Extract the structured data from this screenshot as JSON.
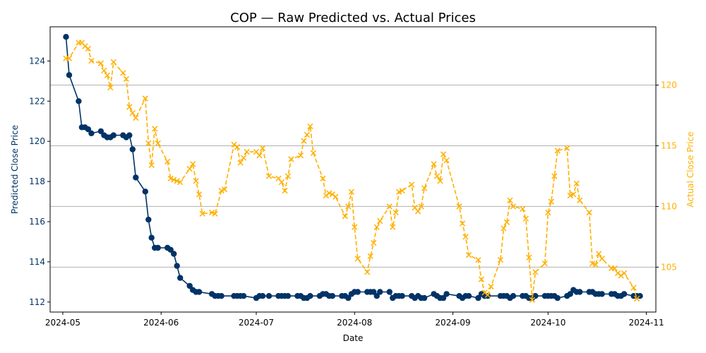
{
  "chart_data": {
    "type": "line",
    "title": "COP — Raw Predicted vs. Actual Prices",
    "xlabel": "Date",
    "ylabel_left": "Predicted Close Price",
    "ylabel_right": "Actual Close Price",
    "x_ticks": [
      "2024-05",
      "2024-06",
      "2024-07",
      "2024-08",
      "2024-09",
      "2024-10",
      "2024-11"
    ],
    "xlim": [
      "2024-04-27",
      "2024-11-04"
    ],
    "ylim_left": [
      111.5,
      125.7
    ],
    "yticks_left": [
      112,
      114,
      116,
      118,
      120,
      122,
      124
    ],
    "ylim_right": [
      101.3,
      124.8
    ],
    "yticks_right": [
      105,
      110,
      115,
      120
    ],
    "grid": "horizontal, at right-axis ticks",
    "colors": {
      "predicted": "#003366",
      "actual": "#ffb000",
      "grid": "#b0b0b0"
    },
    "series": [
      {
        "name": "Predicted Close Price",
        "axis": "left",
        "style": "solid line, circle markers",
        "points": [
          [
            "2024-05-02",
            125.2
          ],
          [
            "2024-05-03",
            123.3
          ],
          [
            "2024-05-06",
            122.0
          ],
          [
            "2024-05-07",
            120.7
          ],
          [
            "2024-05-08",
            120.7
          ],
          [
            "2024-05-09",
            120.6
          ],
          [
            "2024-05-10",
            120.4
          ],
          [
            "2024-05-13",
            120.5
          ],
          [
            "2024-05-14",
            120.3
          ],
          [
            "2024-05-15",
            120.2
          ],
          [
            "2024-05-16",
            120.2
          ],
          [
            "2024-05-17",
            120.3
          ],
          [
            "2024-05-20",
            120.3
          ],
          [
            "2024-05-21",
            120.2
          ],
          [
            "2024-05-22",
            120.3
          ],
          [
            "2024-05-23",
            119.6
          ],
          [
            "2024-05-24",
            118.2
          ],
          [
            "2024-05-27",
            117.5
          ],
          [
            "2024-05-28",
            116.1
          ],
          [
            "2024-05-29",
            115.2
          ],
          [
            "2024-05-30",
            114.7
          ],
          [
            "2024-05-31",
            114.7
          ],
          [
            "2024-06-03",
            114.7
          ],
          [
            "2024-06-04",
            114.6
          ],
          [
            "2024-06-05",
            114.4
          ],
          [
            "2024-06-06",
            113.8
          ],
          [
            "2024-06-07",
            113.2
          ],
          [
            "2024-06-10",
            112.8
          ],
          [
            "2024-06-11",
            112.6
          ],
          [
            "2024-06-12",
            112.5
          ],
          [
            "2024-06-13",
            112.5
          ],
          [
            "2024-06-17",
            112.4
          ],
          [
            "2024-06-18",
            112.3
          ],
          [
            "2024-06-19",
            112.3
          ],
          [
            "2024-06-20",
            112.3
          ],
          [
            "2024-06-24",
            112.3
          ],
          [
            "2024-06-25",
            112.3
          ],
          [
            "2024-06-26",
            112.3
          ],
          [
            "2024-06-27",
            112.3
          ],
          [
            "2024-07-01",
            112.2
          ],
          [
            "2024-07-02",
            112.3
          ],
          [
            "2024-07-03",
            112.3
          ],
          [
            "2024-07-05",
            112.3
          ],
          [
            "2024-07-08",
            112.3
          ],
          [
            "2024-07-09",
            112.3
          ],
          [
            "2024-07-10",
            112.3
          ],
          [
            "2024-07-11",
            112.3
          ],
          [
            "2024-07-14",
            112.3
          ],
          [
            "2024-07-15",
            112.3
          ],
          [
            "2024-07-16",
            112.2
          ],
          [
            "2024-07-17",
            112.2
          ],
          [
            "2024-07-18",
            112.3
          ],
          [
            "2024-07-21",
            112.3
          ],
          [
            "2024-07-22",
            112.4
          ],
          [
            "2024-07-23",
            112.4
          ],
          [
            "2024-07-24",
            112.3
          ],
          [
            "2024-07-25",
            112.3
          ],
          [
            "2024-07-28",
            112.3
          ],
          [
            "2024-07-29",
            112.3
          ],
          [
            "2024-07-30",
            112.2
          ],
          [
            "2024-07-31",
            112.4
          ],
          [
            "2024-08-01",
            112.5
          ],
          [
            "2024-08-02",
            112.5
          ],
          [
            "2024-08-05",
            112.5
          ],
          [
            "2024-08-06",
            112.5
          ],
          [
            "2024-08-07",
            112.5
          ],
          [
            "2024-08-08",
            112.3
          ],
          [
            "2024-08-09",
            112.5
          ],
          [
            "2024-08-12",
            112.5
          ],
          [
            "2024-08-13",
            112.2
          ],
          [
            "2024-08-14",
            112.3
          ],
          [
            "2024-08-15",
            112.3
          ],
          [
            "2024-08-16",
            112.3
          ],
          [
            "2024-08-19",
            112.3
          ],
          [
            "2024-08-20",
            112.2
          ],
          [
            "2024-08-21",
            112.3
          ],
          [
            "2024-08-22",
            112.2
          ],
          [
            "2024-08-23",
            112.2
          ],
          [
            "2024-08-26",
            112.4
          ],
          [
            "2024-08-27",
            112.3
          ],
          [
            "2024-08-28",
            112.2
          ],
          [
            "2024-08-29",
            112.2
          ],
          [
            "2024-08-30",
            112.4
          ],
          [
            "2024-09-03",
            112.3
          ],
          [
            "2024-09-04",
            112.2
          ],
          [
            "2024-09-05",
            112.3
          ],
          [
            "2024-09-06",
            112.3
          ],
          [
            "2024-09-09",
            112.2
          ],
          [
            "2024-09-10",
            112.4
          ],
          [
            "2024-09-11",
            112.3
          ],
          [
            "2024-09-12",
            112.3
          ],
          [
            "2024-09-16",
            112.3
          ],
          [
            "2024-09-17",
            112.3
          ],
          [
            "2024-09-18",
            112.3
          ],
          [
            "2024-09-19",
            112.2
          ],
          [
            "2024-09-20",
            112.3
          ],
          [
            "2024-09-23",
            112.3
          ],
          [
            "2024-09-24",
            112.3
          ],
          [
            "2024-09-25",
            112.2
          ],
          [
            "2024-09-26",
            112.2
          ],
          [
            "2024-09-27",
            112.3
          ],
          [
            "2024-09-30",
            112.3
          ],
          [
            "2024-10-01",
            112.3
          ],
          [
            "2024-10-02",
            112.3
          ],
          [
            "2024-10-03",
            112.3
          ],
          [
            "2024-10-04",
            112.2
          ],
          [
            "2024-10-07",
            112.3
          ],
          [
            "2024-10-08",
            112.4
          ],
          [
            "2024-10-09",
            112.6
          ],
          [
            "2024-10-10",
            112.5
          ],
          [
            "2024-10-11",
            112.5
          ],
          [
            "2024-10-14",
            112.5
          ],
          [
            "2024-10-15",
            112.5
          ],
          [
            "2024-10-16",
            112.4
          ],
          [
            "2024-10-17",
            112.4
          ],
          [
            "2024-10-18",
            112.4
          ],
          [
            "2024-10-21",
            112.4
          ],
          [
            "2024-10-22",
            112.4
          ],
          [
            "2024-10-23",
            112.3
          ],
          [
            "2024-10-24",
            112.3
          ],
          [
            "2024-10-25",
            112.4
          ],
          [
            "2024-10-28",
            112.3
          ],
          [
            "2024-10-29",
            112.3
          ],
          [
            "2024-10-30",
            112.3
          ]
        ]
      },
      {
        "name": "Actual Close Price",
        "axis": "right",
        "style": "dashed line, x markers",
        "points": [
          [
            "2024-05-02",
            122.2
          ],
          [
            "2024-05-03",
            122.2
          ],
          [
            "2024-05-06",
            123.5
          ],
          [
            "2024-05-07",
            123.5
          ],
          [
            "2024-05-08",
            123.2
          ],
          [
            "2024-05-09",
            123.0
          ],
          [
            "2024-05-10",
            122.0
          ],
          [
            "2024-05-13",
            121.8
          ],
          [
            "2024-05-14",
            121.2
          ],
          [
            "2024-05-15",
            120.8
          ],
          [
            "2024-05-16",
            119.8
          ],
          [
            "2024-05-17",
            121.9
          ],
          [
            "2024-05-20",
            121.0
          ],
          [
            "2024-05-21",
            120.5
          ],
          [
            "2024-05-22",
            118.2
          ],
          [
            "2024-05-23",
            117.7
          ],
          [
            "2024-05-24",
            117.3
          ],
          [
            "2024-05-27",
            118.9
          ],
          [
            "2024-05-28",
            115.2
          ],
          [
            "2024-05-29",
            113.4
          ],
          [
            "2024-05-30",
            116.4
          ],
          [
            "2024-05-31",
            115.2
          ],
          [
            "2024-06-03",
            113.7
          ],
          [
            "2024-06-04",
            112.3
          ],
          [
            "2024-06-05",
            112.2
          ],
          [
            "2024-06-06",
            112.1
          ],
          [
            "2024-06-07",
            112.0
          ],
          [
            "2024-06-10",
            113.1
          ],
          [
            "2024-06-11",
            113.5
          ],
          [
            "2024-06-12",
            112.1
          ],
          [
            "2024-06-13",
            111.0
          ],
          [
            "2024-06-14",
            109.4
          ],
          [
            "2024-06-17",
            109.5
          ],
          [
            "2024-06-18",
            109.4
          ],
          [
            "2024-06-20",
            111.3
          ],
          [
            "2024-06-21",
            111.4
          ],
          [
            "2024-06-24",
            115.1
          ],
          [
            "2024-06-25",
            114.9
          ],
          [
            "2024-06-26",
            113.6
          ],
          [
            "2024-06-27",
            114.0
          ],
          [
            "2024-06-28",
            114.5
          ],
          [
            "2024-07-01",
            114.5
          ],
          [
            "2024-07-02",
            114.2
          ],
          [
            "2024-07-03",
            114.8
          ],
          [
            "2024-07-05",
            112.5
          ],
          [
            "2024-07-08",
            112.3
          ],
          [
            "2024-07-09",
            112.0
          ],
          [
            "2024-07-10",
            111.3
          ],
          [
            "2024-07-11",
            112.5
          ],
          [
            "2024-07-12",
            113.9
          ],
          [
            "2024-07-15",
            114.2
          ],
          [
            "2024-07-16",
            115.4
          ],
          [
            "2024-07-17",
            115.9
          ],
          [
            "2024-07-18",
            116.6
          ],
          [
            "2024-07-19",
            114.4
          ],
          [
            "2024-07-22",
            112.3
          ],
          [
            "2024-07-23",
            110.9
          ],
          [
            "2024-07-24",
            111.1
          ],
          [
            "2024-07-25",
            111.0
          ],
          [
            "2024-07-26",
            110.8
          ],
          [
            "2024-07-29",
            109.2
          ],
          [
            "2024-07-30",
            110.0
          ],
          [
            "2024-07-31",
            111.2
          ],
          [
            "2024-08-01",
            108.3
          ],
          [
            "2024-08-02",
            105.7
          ],
          [
            "2024-08-05",
            104.6
          ],
          [
            "2024-08-06",
            105.9
          ],
          [
            "2024-08-07",
            107.0
          ],
          [
            "2024-08-08",
            108.3
          ],
          [
            "2024-08-09",
            108.8
          ],
          [
            "2024-08-12",
            110.0
          ],
          [
            "2024-08-13",
            108.3
          ],
          [
            "2024-08-14",
            109.5
          ],
          [
            "2024-08-15",
            111.2
          ],
          [
            "2024-08-16",
            111.3
          ],
          [
            "2024-08-19",
            111.8
          ],
          [
            "2024-08-20",
            109.9
          ],
          [
            "2024-08-21",
            109.6
          ],
          [
            "2024-08-22",
            110.0
          ],
          [
            "2024-08-23",
            111.5
          ],
          [
            "2024-08-26",
            113.5
          ],
          [
            "2024-08-27",
            112.5
          ],
          [
            "2024-08-28",
            112.1
          ],
          [
            "2024-08-29",
            114.3
          ],
          [
            "2024-08-30",
            113.8
          ],
          [
            "2024-09-03",
            110.0
          ],
          [
            "2024-09-04",
            108.6
          ],
          [
            "2024-09-05",
            107.5
          ],
          [
            "2024-09-06",
            106.0
          ],
          [
            "2024-09-09",
            105.6
          ],
          [
            "2024-09-10",
            104.0
          ],
          [
            "2024-09-11",
            102.9
          ],
          [
            "2024-09-12",
            102.7
          ],
          [
            "2024-09-13",
            103.4
          ],
          [
            "2024-09-16",
            105.6
          ],
          [
            "2024-09-17",
            108.2
          ],
          [
            "2024-09-18",
            108.7
          ],
          [
            "2024-09-19",
            110.5
          ],
          [
            "2024-09-20",
            110.0
          ],
          [
            "2024-09-23",
            109.8
          ],
          [
            "2024-09-24",
            109.0
          ],
          [
            "2024-09-25",
            105.8
          ],
          [
            "2024-09-26",
            102.3
          ],
          [
            "2024-09-27",
            104.6
          ],
          [
            "2024-09-30",
            105.3
          ],
          [
            "2024-10-01",
            109.5
          ],
          [
            "2024-10-02",
            110.4
          ],
          [
            "2024-10-03",
            112.5
          ],
          [
            "2024-10-04",
            114.6
          ],
          [
            "2024-10-07",
            114.8
          ],
          [
            "2024-10-08",
            110.9
          ],
          [
            "2024-10-09",
            111.0
          ],
          [
            "2024-10-10",
            111.9
          ],
          [
            "2024-10-11",
            110.5
          ],
          [
            "2024-10-14",
            109.5
          ],
          [
            "2024-10-15",
            105.3
          ],
          [
            "2024-10-16",
            105.2
          ],
          [
            "2024-10-17",
            106.1
          ],
          [
            "2024-10-18",
            105.7
          ],
          [
            "2024-10-21",
            104.9
          ],
          [
            "2024-10-22",
            104.9
          ],
          [
            "2024-10-23",
            104.5
          ],
          [
            "2024-10-24",
            104.3
          ],
          [
            "2024-10-25",
            104.5
          ],
          [
            "2024-10-28",
            103.3
          ],
          [
            "2024-10-29",
            102.4
          ]
        ]
      }
    ]
  }
}
